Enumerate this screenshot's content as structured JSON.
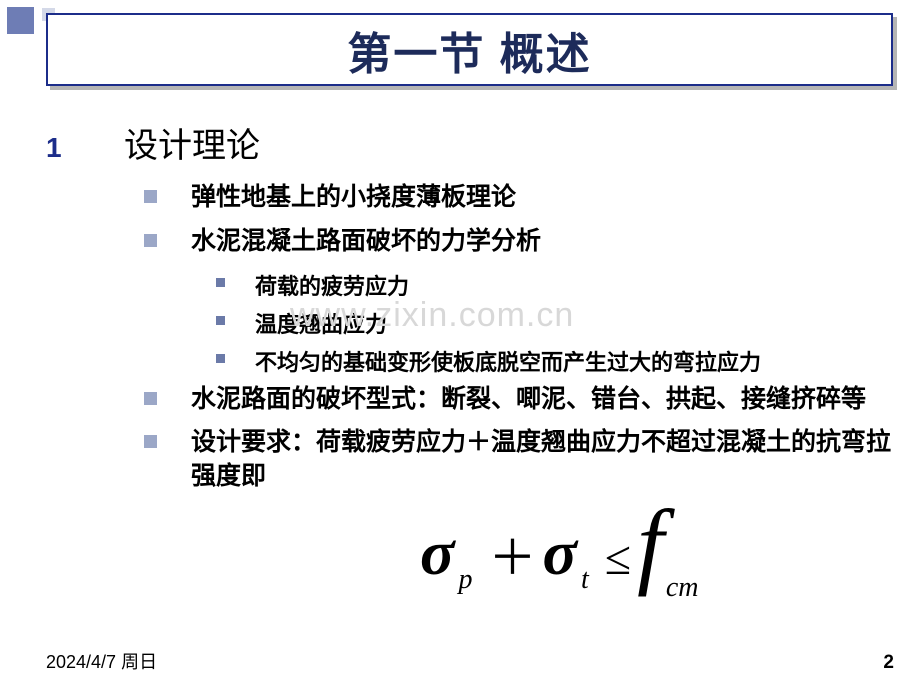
{
  "title": "第一节  概述",
  "section_number": "1",
  "section_title": "设计理论",
  "bullets_l2": [
    "弹性地基上的小挠度薄板理论",
    "水泥混凝土路面破坏的力学分析"
  ],
  "bullets_l3": [
    "荷载的疲劳应力",
    "温度翘曲应力",
    "不均匀的基础变形使板底脱空而产生过大的弯拉应力"
  ],
  "bullets_l2b": [
    "水泥路面的破坏型式：断裂、唧泥、错台、拱起、接缝挤碎等",
    "设计要求：荷载疲劳应力＋温度翘曲应力不超过混凝土的抗弯拉强度即"
  ],
  "equation": {
    "sigma1_sub": "p",
    "plus": "＋",
    "sigma2_sub": "t",
    "leq": "≤",
    "f_sub": "cm"
  },
  "watermark": "www.zixin.com.cn",
  "footer_date": "2024/4/7 周日",
  "footer_page": "2",
  "colors": {
    "title_border": "#1c2d8a",
    "title_text": "#1d2b5a",
    "bullet_l2": "#9ba7c7",
    "bullet_l3": "#6b7aa8",
    "deco_main": "#6e7db5",
    "watermark": "#d8d8d8"
  }
}
